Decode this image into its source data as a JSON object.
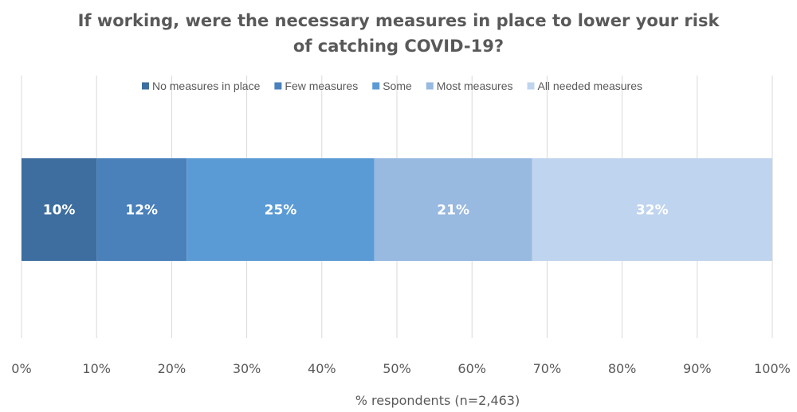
{
  "chart_data": {
    "type": "bar",
    "orientation": "horizontal",
    "stacked": true,
    "title_lines": [
      "If working, were the necessary measures in place to lower your risk",
      "of catching COVID-19?"
    ],
    "xlabel": "% respondents  (n=2,463)",
    "ylabel": "",
    "xlim": [
      0,
      100
    ],
    "x_ticks": [
      0,
      10,
      20,
      30,
      40,
      50,
      60,
      70,
      80,
      90,
      100
    ],
    "x_tick_labels": [
      "0%",
      "10%",
      "20%",
      "30%",
      "40%",
      "50%",
      "60%",
      "70%",
      "80%",
      "90%",
      "100%"
    ],
    "grid": "vertical",
    "legend_position": "top",
    "series": [
      {
        "name": "No measures in place",
        "value": 10,
        "plotted": 10,
        "label": "10%",
        "color": "#3d6e9f"
      },
      {
        "name": "Few measures",
        "value": 12,
        "plotted": 12,
        "label": "12%",
        "color": "#4a81bb"
      },
      {
        "name": "Some",
        "value": 25,
        "plotted": 25,
        "label": "25%",
        "color": "#5b9bd5"
      },
      {
        "name": "Most measures",
        "value": 21,
        "plotted": 21,
        "label": "21%",
        "color": "#98b9e0"
      },
      {
        "name": "All needed measures",
        "value": 32,
        "plotted": 32,
        "label": "32%",
        "color": "#bfd4ee"
      }
    ]
  },
  "colors": {
    "text": "#595959",
    "gridline": "#d9d9d9"
  }
}
